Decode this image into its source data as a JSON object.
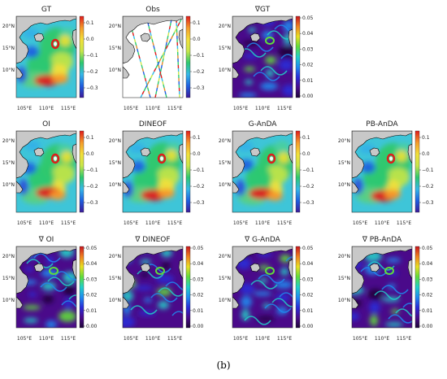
{
  "figure_caption": "(b)",
  "panels": [
    {
      "title": "GT",
      "kind": "ssh",
      "colorbar": "ssh",
      "visible": true
    },
    {
      "title": "Obs",
      "kind": "obs",
      "colorbar": "ssh",
      "visible": true
    },
    {
      "title": "∇GT",
      "kind": "grad",
      "colorbar": "grad",
      "visible": true
    },
    {
      "title": "",
      "kind": "empty",
      "colorbar": "none",
      "visible": false
    },
    {
      "title": "OI",
      "kind": "ssh",
      "colorbar": "ssh",
      "visible": true
    },
    {
      "title": "DINEOF",
      "kind": "ssh",
      "colorbar": "ssh",
      "visible": true
    },
    {
      "title": "G-AnDA",
      "kind": "ssh",
      "colorbar": "ssh",
      "visible": true
    },
    {
      "title": "PB-AnDA",
      "kind": "ssh",
      "colorbar": "ssh",
      "visible": true
    },
    {
      "title": "∇ OI",
      "kind": "grad",
      "colorbar": "grad",
      "visible": true
    },
    {
      "title": "∇ DINEOF",
      "kind": "grad",
      "colorbar": "grad",
      "visible": true
    },
    {
      "title": "∇ G-AnDA",
      "kind": "grad",
      "colorbar": "grad",
      "visible": true
    },
    {
      "title": "∇ PB-AnDA",
      "kind": "grad",
      "colorbar": "grad",
      "visible": true
    }
  ],
  "axes": {
    "x_ticks": [
      "105°E",
      "110°E",
      "115°E"
    ],
    "y_ticks": [
      "20°N",
      "15°N",
      "10°N"
    ]
  },
  "colorbars": {
    "ssh": {
      "ticks": [
        "0.1",
        "0.0",
        "−0.1",
        "−0.2",
        "−0.3"
      ],
      "range": [
        -0.33,
        0.15
      ]
    },
    "grad": {
      "ticks": [
        "0.05",
        "0.04",
        "0.03",
        "0.02",
        "0.01",
        "0.00"
      ],
      "range": [
        0.0,
        0.055
      ]
    }
  },
  "colors": {
    "land": "#c8c8c8",
    "coast": "#000000",
    "ssh_stops": [
      "#3b1a9a",
      "#1f5fe0",
      "#35b8e8",
      "#2dc86e",
      "#c8e64a",
      "#f2e03a",
      "#f59a2a",
      "#e01b1b"
    ],
    "grad_stops": [
      "#1e0638",
      "#4a0a8a",
      "#2a2cd8",
      "#1f8cf0",
      "#21d1c8",
      "#5fdc3b",
      "#e8e022",
      "#f08020",
      "#c8141e"
    ]
  }
}
